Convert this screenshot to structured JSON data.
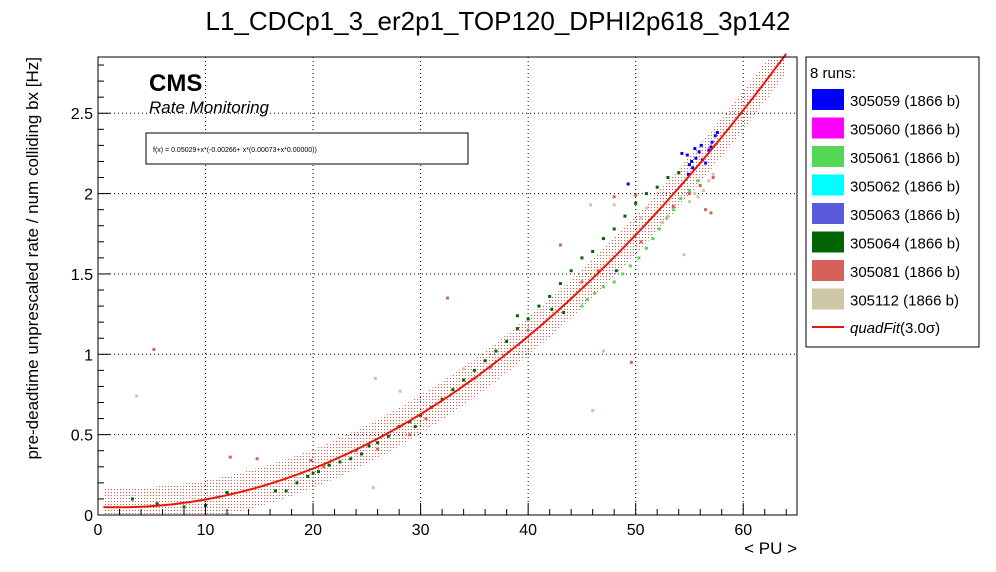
{
  "chart_data": {
    "type": "scatter",
    "title": "L1_CDCp1_3_er2p1_TOP120_DPHI2p618_3p142",
    "xlabel": "< PU >",
    "ylabel": "pre-deadtime unprescaled rate / num colliding bx [Hz]",
    "xlim": [
      0,
      65
    ],
    "ylim": [
      0,
      2.85
    ],
    "x_ticks": [
      "0",
      "10",
      "20",
      "30",
      "40",
      "50",
      "60"
    ],
    "y_ticks": [
      "0",
      "0.5",
      "1",
      "1.5",
      "2",
      "2.5"
    ],
    "grid": true,
    "legend_placement": "right",
    "cms_label": "CMS",
    "cms_sublabel": "Rate Monitoring",
    "fit_formula": "f(x) = 0.05029+x*(-0.00266+ x*(0.00073+x*0.00000))",
    "legend_header": "8 runs:",
    "fit": {
      "name": "quadFit(3.0σ)",
      "label_fit": "quadFit",
      "label_sigma": "(3.0σ)",
      "coefficients": [
        0.05029,
        -0.00266,
        0.00073,
        0.0
      ],
      "band_sigma": 0.12,
      "color": "#e8170a"
    },
    "series": [
      {
        "name": "305059 (1866 b)",
        "color": "#0000ff",
        "points": [
          [
            54.3,
            2.25
          ],
          [
            54.8,
            2.24
          ],
          [
            55.0,
            2.18
          ],
          [
            55.3,
            2.16
          ],
          [
            55.6,
            2.22
          ],
          [
            55.9,
            2.26
          ],
          [
            56.2,
            2.21
          ],
          [
            56.5,
            2.19
          ],
          [
            56.8,
            2.27
          ],
          [
            57.1,
            2.32
          ],
          [
            57.4,
            2.36
          ],
          [
            57.0,
            2.29
          ],
          [
            55.5,
            2.28
          ],
          [
            56.1,
            2.3
          ],
          [
            54.9,
            2.12
          ],
          [
            55.2,
            2.2
          ],
          [
            49.3,
            2.06
          ],
          [
            57.6,
            2.38
          ]
        ]
      },
      {
        "name": "305060 (1866 b)",
        "color": "#ff00ff",
        "points": []
      },
      {
        "name": "305061 (1866 b)",
        "color": "#55d655",
        "points": [
          [
            45.0,
            1.3
          ],
          [
            45.5,
            1.34
          ],
          [
            46.2,
            1.38
          ],
          [
            47.0,
            1.42
          ],
          [
            48.0,
            1.45
          ],
          [
            48.8,
            1.5
          ],
          [
            49.5,
            1.55
          ],
          [
            50.3,
            1.6
          ],
          [
            51.0,
            1.66
          ],
          [
            51.6,
            1.72
          ],
          [
            52.2,
            1.78
          ],
          [
            52.9,
            1.85
          ],
          [
            53.5,
            1.9
          ],
          [
            54.2,
            1.97
          ],
          [
            55.0,
            2.02
          ],
          [
            55.8,
            2.08
          ]
        ]
      },
      {
        "name": "305062 (1866 b)",
        "color": "#00ffff",
        "points": []
      },
      {
        "name": "305063 (1866 b)",
        "color": "#5a5adc",
        "points": []
      },
      {
        "name": "305064 (1866 b)",
        "color": "#006400",
        "points": [
          [
            3.2,
            0.1
          ],
          [
            5.5,
            0.07
          ],
          [
            8.0,
            0.05
          ],
          [
            10.0,
            0.06
          ],
          [
            12.0,
            0.14
          ],
          [
            16.5,
            0.15
          ],
          [
            17.5,
            0.15
          ],
          [
            18.5,
            0.2
          ],
          [
            19.5,
            0.24
          ],
          [
            20.5,
            0.27
          ],
          [
            21.5,
            0.31
          ],
          [
            22.5,
            0.33
          ],
          [
            23.5,
            0.35
          ],
          [
            24.5,
            0.38
          ],
          [
            25.2,
            0.43
          ],
          [
            26.0,
            0.45
          ],
          [
            27.0,
            0.49
          ],
          [
            28.0,
            0.55
          ],
          [
            29.0,
            0.58
          ],
          [
            30.0,
            0.62
          ],
          [
            31.0,
            0.67
          ],
          [
            32.0,
            0.72
          ],
          [
            33.0,
            0.78
          ],
          [
            34.0,
            0.84
          ],
          [
            35.0,
            0.9
          ],
          [
            36.0,
            0.96
          ],
          [
            37.0,
            1.02
          ],
          [
            38.0,
            1.08
          ],
          [
            39.0,
            1.16
          ],
          [
            40.0,
            1.22
          ],
          [
            41.0,
            1.3
          ],
          [
            42.0,
            1.36
          ],
          [
            43.0,
            1.44
          ],
          [
            44.0,
            1.52
          ],
          [
            45.0,
            1.6
          ],
          [
            46.0,
            1.64
          ],
          [
            47.0,
            1.72
          ],
          [
            48.0,
            1.78
          ],
          [
            49.0,
            1.86
          ],
          [
            50.0,
            1.94
          ],
          [
            51.0,
            2.0
          ],
          [
            52.0,
            2.04
          ],
          [
            53.0,
            2.1
          ],
          [
            54.0,
            2.13
          ],
          [
            39.0,
            1.24
          ],
          [
            42.2,
            1.28
          ],
          [
            43.3,
            1.26
          ],
          [
            48.2,
            1.52
          ],
          [
            29.5,
            0.55
          ],
          [
            20.0,
            0.26
          ]
        ]
      },
      {
        "name": "305081 (1866 b)",
        "color": "#d6615a",
        "points": [
          [
            5.2,
            1.03
          ],
          [
            12.3,
            0.36
          ],
          [
            14.8,
            0.35
          ],
          [
            19.8,
            0.34
          ],
          [
            32.5,
            1.35
          ],
          [
            43.0,
            1.68
          ],
          [
            48.0,
            1.98
          ],
          [
            49.6,
            0.95
          ],
          [
            50.0,
            1.99
          ],
          [
            53.5,
            1.92
          ],
          [
            56.5,
            1.9
          ],
          [
            57.0,
            1.88
          ],
          [
            21.0,
            0.3
          ],
          [
            30.5,
            0.6
          ],
          [
            35.0,
            0.85
          ],
          [
            40.0,
            1.15
          ],
          [
            45.0,
            1.45
          ],
          [
            50.5,
            1.7
          ],
          [
            55.0,
            2.0
          ],
          [
            56.0,
            2.05
          ],
          [
            57.2,
            2.1
          ],
          [
            26.0,
            0.41
          ],
          [
            29.0,
            0.5
          ],
          [
            36.5,
            0.92
          ],
          [
            24.0,
            0.4
          ],
          [
            46.5,
            1.52
          ]
        ]
      },
      {
        "name": "305112 (1866 b)",
        "color": "#cdc6a7",
        "points": [
          [
            3.6,
            0.74
          ],
          [
            25.8,
            0.85
          ],
          [
            28.1,
            0.77
          ],
          [
            25.6,
            0.17
          ],
          [
            34.0,
            0.91
          ],
          [
            46.0,
            0.65
          ],
          [
            48.0,
            1.93
          ],
          [
            51.0,
            1.91
          ],
          [
            54.5,
            1.62
          ],
          [
            55.0,
            1.95
          ],
          [
            55.8,
            1.98
          ],
          [
            56.3,
            2.02
          ],
          [
            56.8,
            2.08
          ],
          [
            57.2,
            2.12
          ],
          [
            55.5,
            2.0
          ],
          [
            53.0,
            1.86
          ],
          [
            45.8,
            1.93
          ],
          [
            47.0,
            1.02
          ],
          [
            50.5,
            1.85
          ],
          [
            52.5,
            1.82
          ]
        ]
      }
    ]
  }
}
